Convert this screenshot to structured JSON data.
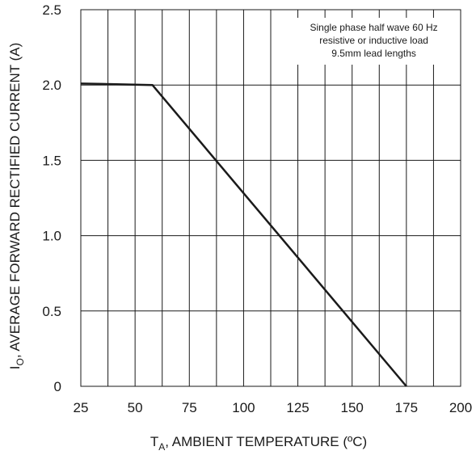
{
  "chart_data": {
    "type": "line",
    "title": "",
    "xlabel": {
      "main": "T",
      "sub": "A",
      "rest": ", AMBIENT TEMPERATURE (ºC)"
    },
    "ylabel": {
      "main": "I",
      "sub": "O",
      "rest": ", AVERAGE FORWARD RECTIFIED CURRENT (A)"
    },
    "xlim": [
      25,
      200
    ],
    "ylim": [
      0,
      2.5
    ],
    "x_ticks": [
      25,
      50,
      75,
      100,
      125,
      150,
      175,
      200
    ],
    "x_tick_labels": [
      "25",
      "50",
      "75",
      "100",
      "125",
      "150",
      "175",
      "200"
    ],
    "y_ticks": [
      0,
      0.5,
      1.0,
      1.5,
      2.0,
      2.5
    ],
    "y_tick_labels": [
      "0",
      "0.5",
      "1.0",
      "1.5",
      "2.0",
      "2.5"
    ],
    "x_minor_step": 12.5,
    "grid": true,
    "annotation": [
      "Single phase half wave 60 Hz",
      "resistive or inductive load",
      "9.5mm lead lengths"
    ],
    "series": [
      {
        "x": [
          25,
          58,
          175
        ],
        "y": [
          2.01,
          2.0,
          0
        ],
        "color": "#1a1a1a"
      }
    ]
  }
}
